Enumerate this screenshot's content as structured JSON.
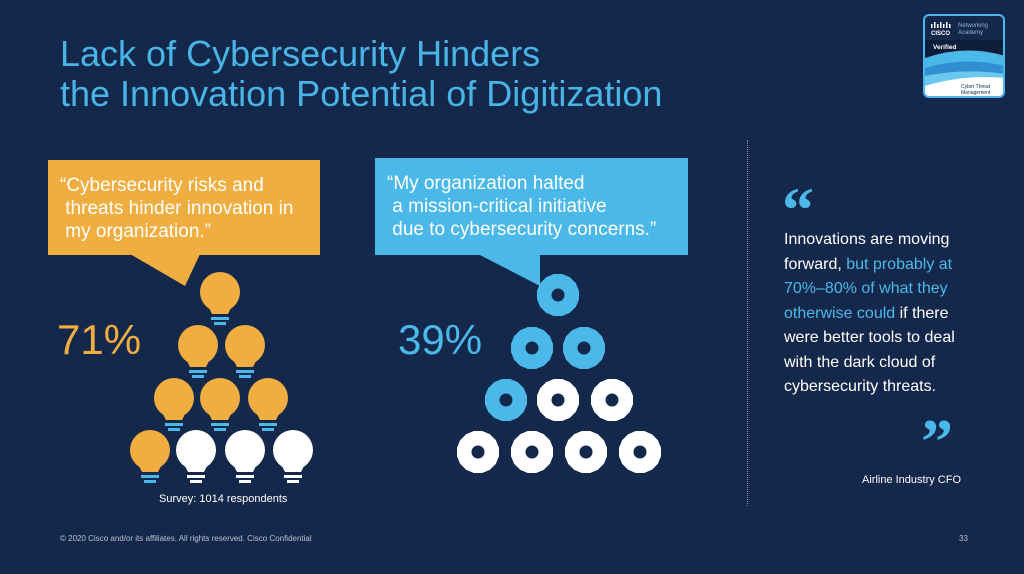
{
  "title": {
    "line1": "Lack of Cybersecurity Hinders",
    "line2": "the Innovation Potential of Digitization"
  },
  "badge": {
    "brand": "CISCO",
    "org_line1": "Networking",
    "org_line2": "Academy",
    "status": "Verified",
    "course_line1": "Cyber Threat",
    "course_line2": "Management"
  },
  "left_stat": {
    "quote_lines": [
      "“Cybersecurity risks and",
      " threats hinder innovation in",
      " my organization.”"
    ],
    "percent": "71%",
    "icon": "lightbulb-icon",
    "filled_count": 7,
    "total_count": 10,
    "filled_color": "#f0ad40",
    "empty_color": "#ffffff"
  },
  "right_stat": {
    "quote_lines": [
      "“My organization halted",
      " a mission-critical initiative",
      " due to cybersecurity concerns.”"
    ],
    "percent": "39%",
    "icon": "gear-icon",
    "filled_count": 4,
    "total_count": 10,
    "filled_color": "#4ab8e8",
    "empty_color": "#ffffff"
  },
  "survey_note": "Survey: 1014 respondents",
  "testimonial": {
    "open_mark": "“",
    "part1": "Innovations are moving forward, ",
    "highlight": "but probably at 70%–80% of what they otherwise could",
    "part2": " if there were better tools to deal with the dark cloud of cybersecurity threats.",
    "close_mark": "”",
    "attribution": "Airline Industry CFO"
  },
  "footer": {
    "copyright": "© 2020  Cisco and/or its affiliates. All rights reserved.   Cisco Confidential",
    "page_number": "33"
  },
  "colors": {
    "background": "#14284b",
    "title": "#49b4e6",
    "orange": "#f0ad40",
    "light_blue": "#4ab8e8"
  }
}
